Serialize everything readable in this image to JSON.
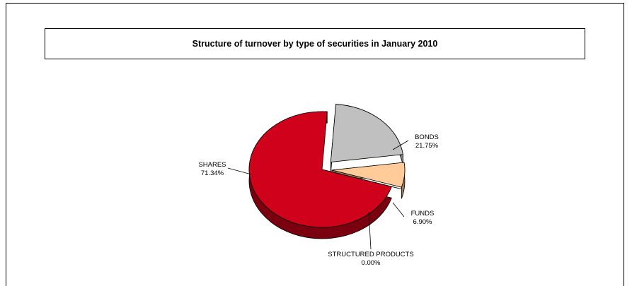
{
  "chart_data": {
    "type": "pie",
    "title": "Structure of turnover by type of securities in January 2010",
    "categories": [
      "SHARES",
      "BONDS",
      "FUNDS",
      "STRUCTURED PRODUCTS"
    ],
    "values": [
      71.34,
      21.75,
      6.9,
      0.0
    ],
    "value_labels": [
      "71.34%",
      "21.75%",
      "6.90%",
      "0.00%"
    ],
    "colors": [
      "#d0021b",
      "#c0c0c0",
      "#ffcc99",
      "#ffffff"
    ],
    "side_colors": [
      "#7a0010",
      "#808080",
      "#a07b5a",
      "#cccccc"
    ],
    "style": "3d-exploded",
    "legend": "none"
  }
}
